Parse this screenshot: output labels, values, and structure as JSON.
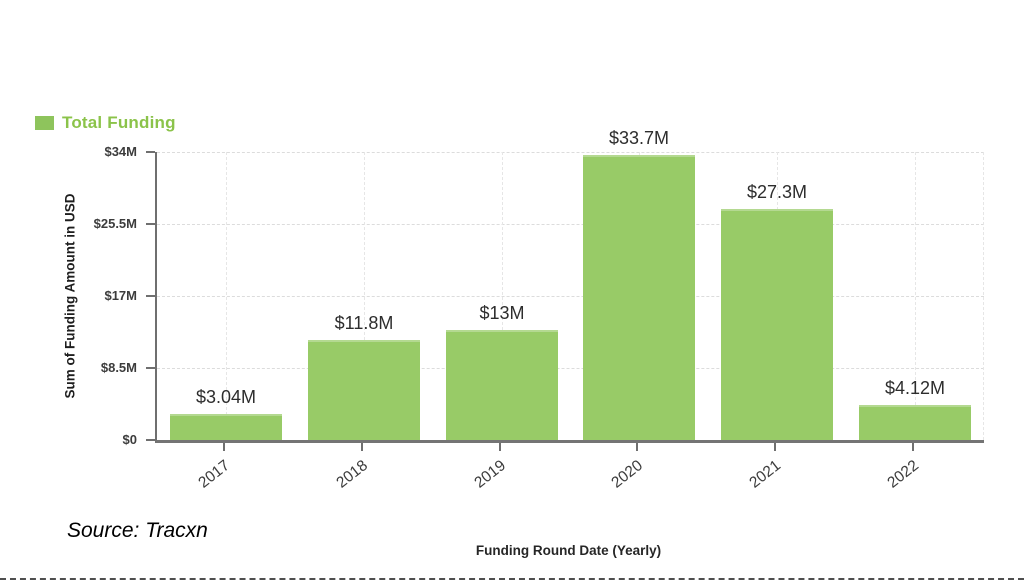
{
  "chart_data": {
    "type": "bar",
    "categories": [
      "2017",
      "2018",
      "2019",
      "2020",
      "2021",
      "2022"
    ],
    "values": [
      3.04,
      11.8,
      13,
      33.7,
      27.3,
      4.12
    ],
    "value_labels": [
      "$3.04M",
      "$11.8M",
      "$13M",
      "$33.7M",
      "$27.3M",
      "$4.12M"
    ],
    "xlabel": "Funding Round Date (Yearly)",
    "ylabel": "Sum of Funding Amount in USD",
    "ylim": [
      0,
      34
    ],
    "yticks": [
      {
        "value": 0,
        "label": "$0"
      },
      {
        "value": 8.5,
        "label": "$8.5M"
      },
      {
        "value": 17,
        "label": "$17M"
      },
      {
        "value": 25.5,
        "label": "$25.5M"
      },
      {
        "value": 34,
        "label": "$34M"
      }
    ],
    "legend": [
      {
        "label": "Total Funding",
        "color": "#98cb67"
      }
    ],
    "legend_position": "top-left",
    "grid": "dashed",
    "colors": {
      "bar": "#98cb67",
      "legend_swatch": "#8ec45c",
      "legend_text": "#8bc34a",
      "axis": "#6f6f6f",
      "gridline_h": "#dcdcdc",
      "gridline_v": "#e6e6e6",
      "tick_label": "#3c3c3c",
      "value_label": "#2d2d2d"
    }
  },
  "source": {
    "text": "Source: Tracxn"
  }
}
